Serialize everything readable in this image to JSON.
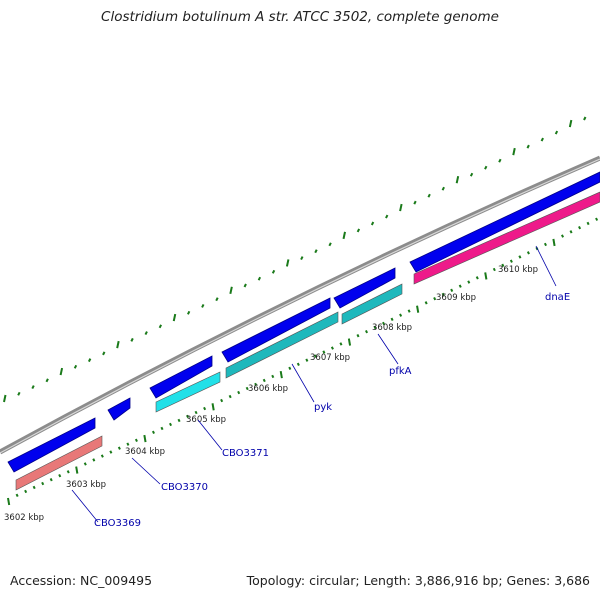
{
  "title": "Clostridium botulinum A str. ATCC 3502, complete genome",
  "accession_label": "Accession: NC_009495",
  "summary_label": "Topology: circular; Length: 3,886,916 bp; Genes: 3,686",
  "colors": {
    "backbone": "#8c8c8c",
    "cds_forward": "#0000ee",
    "gc_tick": "#1a7a1a",
    "label": "#0000aa",
    "pink": "#e87878",
    "cyan": "#22e0e8",
    "teal": "#1fb8bc",
    "magenta": "#ee1a8a"
  },
  "scale_labels": [
    "3602 kbp",
    "3603 kbp",
    "3604 kbp",
    "3605 kbp",
    "3606 kbp",
    "3607 kbp",
    "3608 kbp",
    "3609 kbp",
    "3610 kbp"
  ],
  "genes": [
    {
      "name": "CBO3369"
    },
    {
      "name": "CBO3370"
    },
    {
      "name": "CBO3371"
    },
    {
      "name": "pyk"
    },
    {
      "name": "pfkA"
    },
    {
      "name": "dnaE"
    }
  ]
}
